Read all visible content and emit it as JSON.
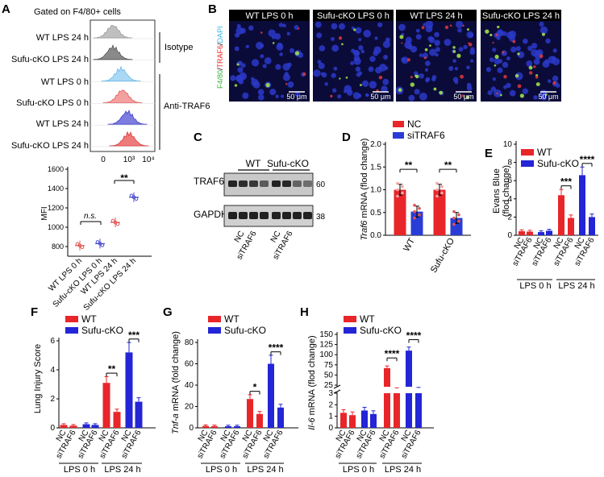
{
  "panelA": {
    "label": "A",
    "gating": "Gated on F4/80+ cells",
    "rows": [
      "WT LPS 24 h",
      "Sufu-cKO LPS 24 h",
      "WT LPS 0 h",
      "Sufu-cKO LPS 0 h",
      "WT LPS 24 h",
      "Sufu-cKO LPS 24 h"
    ],
    "isotype": "Isotype",
    "anti": "Anti-TRAF6",
    "ticks": [
      "0",
      "10³",
      "10⁴"
    ],
    "mfi_ylabel": "MFI",
    "mfi_yticks": [
      "800",
      "1000",
      "1200",
      "1400",
      "1600"
    ],
    "mfi_ns": "n.s.",
    "mfi_sig": "**",
    "mfi_cats": [
      "WT LPS 0 h",
      "Sufu-cKO LPS 0 h",
      "WT LPS 24 h",
      "Sufu-cKO LPS 24 h"
    ]
  },
  "panelB": {
    "label": "B",
    "side": [
      "F4/80",
      "/",
      "TRAF6",
      "/",
      "DAPI"
    ],
    "titles": [
      "WT LPS 0 h",
      "Sufu-cKO LPS 0 h",
      "WT LPS 24 h",
      "Sufu-cKO LPS 24 h"
    ],
    "scale": "50 μm"
  },
  "panelC": {
    "label": "C",
    "wt": "WT",
    "ko": "Sufu-cKO",
    "traf6": "TRAF6",
    "gapdh": "GAPDH",
    "m60": "60",
    "m38": "38",
    "lanes": [
      "NC",
      "siTRAF6",
      "NC",
      "siTRAF6"
    ]
  },
  "panelD": {
    "label": "D",
    "legend": [
      "NC",
      "siTRAF6"
    ],
    "ylabel": "Traf6",
    "ylabel2": " mRNA (flod change)",
    "yticks": [
      "0.0",
      "0.5",
      "1.0",
      "1.5",
      "2.0"
    ],
    "x": [
      "WT",
      "Sufu-cKO"
    ],
    "sig": [
      "**",
      "**"
    ]
  },
  "panelE": {
    "label": "E",
    "legend": [
      "WT",
      "Sufu-cKO"
    ],
    "ylabel": "Evans Blue",
    "ylabel2": "(flod change)",
    "yticks": [
      "0",
      "2",
      "4",
      "6",
      "8",
      "10"
    ],
    "sig": [
      "***",
      "****"
    ]
  },
  "panelF": {
    "label": "F",
    "legend": [
      "WT",
      "Sufu-cKO"
    ],
    "ylabel": "Lung Injury Score",
    "yticks": [
      "0",
      "2",
      "4",
      "6"
    ],
    "sig": [
      "**",
      "***"
    ]
  },
  "panelG": {
    "label": "G",
    "legend": [
      "WT",
      "Sufu-cKO"
    ],
    "ylabel": "Tnf-a",
    "ylabel2": " mRNA (fold change)",
    "yticks": [
      "0",
      "20",
      "40",
      "60",
      "80"
    ],
    "sig": [
      "*",
      "****"
    ]
  },
  "panelH": {
    "label": "H",
    "legend": [
      "WT",
      "Sufu-cKO"
    ],
    "ylabel": "Il-6",
    "ylabel2": " mRNA  (flod change)",
    "yticks_low": [
      "0",
      "1",
      "2",
      "3"
    ],
    "yticks_high": [
      "25",
      "50",
      "75",
      "100",
      "125",
      "150"
    ],
    "sig": [
      "****",
      "****"
    ]
  },
  "xgroups": {
    "cats": [
      "NC",
      "siTRAF6",
      "NC",
      "siTRAF6",
      "NC",
      "siTRAF6",
      "NC",
      "siTRAF6"
    ],
    "g0": "LPS 0 h",
    "g24": "LPS 24 h"
  },
  "colors": {
    "red": "#e8262a",
    "blue": "#2325d6",
    "nc_red": "#e8262a",
    "si_blue": "#2a3cd6"
  },
  "chart_data": [
    {
      "panel": "A",
      "type": "scatter",
      "ylabel": "MFI",
      "categories": [
        "WT LPS 0 h",
        "Sufu-cKO LPS 0 h",
        "WT LPS 24 h",
        "Sufu-cKO LPS 24 h"
      ],
      "values": [
        810,
        830,
        1050,
        1310
      ],
      "ylim": [
        700,
        1600
      ]
    },
    {
      "panel": "D",
      "type": "bar",
      "ylabel": "Traf6 mRNA (flod change)",
      "categories": [
        "WT",
        "Sufu-cKO"
      ],
      "series": [
        {
          "name": "NC",
          "values": [
            1.0,
            1.0
          ]
        },
        {
          "name": "siTRAF6",
          "values": [
            0.52,
            0.38
          ]
        }
      ],
      "ylim": [
        0,
        2.0
      ]
    },
    {
      "panel": "E",
      "type": "bar",
      "ylabel": "Evans Blue (flod change)",
      "categories": [
        "NC",
        "siTRAF6",
        "NC",
        "siTRAF6"
      ],
      "series": [
        {
          "name": "WT",
          "values": [
            0.45,
            0.4,
            4.4,
            1.9
          ]
        },
        {
          "name": "Sufu-cKO",
          "values": [
            0.35,
            0.5,
            6.6,
            2.0
          ]
        }
      ],
      "ylim": [
        0,
        10
      ]
    },
    {
      "panel": "F",
      "type": "bar",
      "ylabel": "Lung Injury Score",
      "categories": [
        "NC",
        "siTRAF6",
        "NC",
        "siTRAF6"
      ],
      "series": [
        {
          "name": "WT",
          "values": [
            0.2,
            0.15,
            3.1,
            1.1
          ]
        },
        {
          "name": "Sufu-cKO",
          "values": [
            0.25,
            0.2,
            5.2,
            1.8
          ]
        }
      ],
      "ylim": [
        0,
        6
      ]
    },
    {
      "panel": "G",
      "type": "bar",
      "ylabel": "Tnf-a mRNA (fold change)",
      "categories": [
        "NC",
        "siTRAF6",
        "NC",
        "siTRAF6"
      ],
      "series": [
        {
          "name": "WT",
          "values": [
            1.8,
            1.6,
            27,
            13
          ]
        },
        {
          "name": "Sufu-cKO",
          "values": [
            1.5,
            1.5,
            60,
            19
          ]
        }
      ],
      "ylim": [
        0,
        80
      ]
    },
    {
      "panel": "H",
      "type": "bar",
      "ylabel": "Il-6 mRNA (flod change)",
      "categories": [
        "NC",
        "siTRAF6",
        "NC",
        "siTRAF6"
      ],
      "series": [
        {
          "name": "WT",
          "values": [
            1.3,
            1.1,
            67,
            17
          ]
        },
        {
          "name": "Sufu-cKO",
          "values": [
            1.5,
            1.2,
            110,
            18
          ]
        }
      ],
      "ylim": [
        0,
        150
      ]
    }
  ]
}
